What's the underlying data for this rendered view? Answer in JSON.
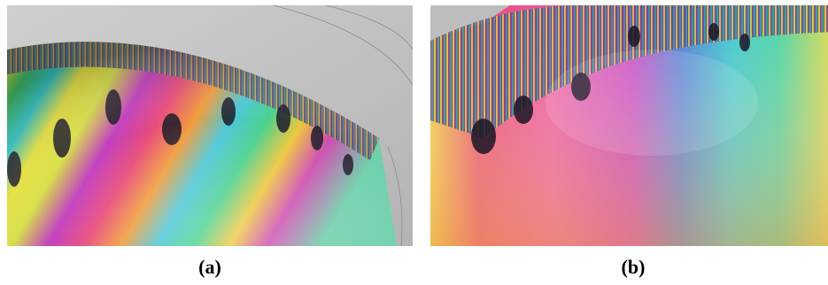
{
  "figure": {
    "panels": [
      {
        "id": "a",
        "caption": "(a)"
      },
      {
        "id": "b",
        "caption": "(b)"
      }
    ]
  }
}
